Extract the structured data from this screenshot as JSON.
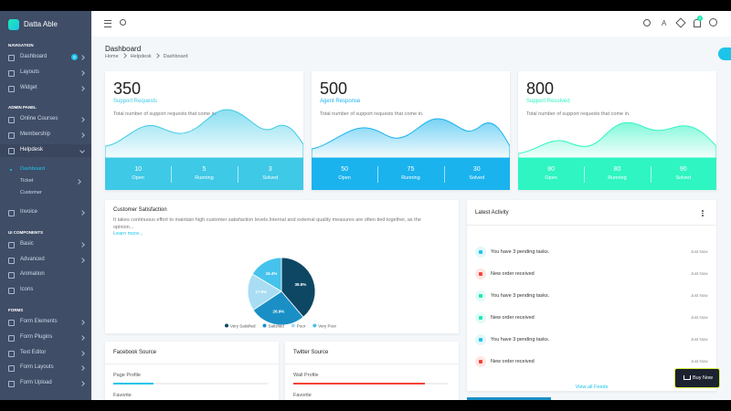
{
  "sidebar": {
    "brand": "Datta Able",
    "sections": [
      {
        "title": "NAVIGATION",
        "items": [
          {
            "label": "Dashboard",
            "badge": "5",
            "chevron": true
          },
          {
            "label": "Layouts",
            "chevron": true
          },
          {
            "label": "Widget",
            "chevron": true
          }
        ]
      },
      {
        "title": "ADMIN PANEL",
        "items": [
          {
            "label": "Online Courses",
            "chevron": true
          },
          {
            "label": "Membership",
            "chevron": true
          },
          {
            "label": "Helpdesk",
            "chevron": true,
            "active": true,
            "children": [
              "Dashboard",
              "Ticket",
              "Customer"
            ]
          },
          {
            "label": "Invoice",
            "chevron": true
          }
        ]
      },
      {
        "title": "UI COMPONENTS",
        "items": [
          {
            "label": "Basic",
            "chevron": true
          },
          {
            "label": "Advanced",
            "chevron": true
          },
          {
            "label": "Animation"
          },
          {
            "label": "Icons"
          }
        ]
      },
      {
        "title": "FORMS",
        "items": [
          {
            "label": "Form Elements",
            "chevron": true
          },
          {
            "label": "Form Plugins",
            "chevron": true
          },
          {
            "label": "Text Editor",
            "chevron": true
          },
          {
            "label": "Form Layouts",
            "chevron": true
          },
          {
            "label": "Form Upload",
            "chevron": true
          }
        ]
      }
    ]
  },
  "header": {
    "title": "Dashboard",
    "breadcrumb": [
      "Home",
      "Helpdesk",
      "Dashboard"
    ],
    "notification_count": "2"
  },
  "stat_cards": [
    {
      "value": 350,
      "label": "Support Requests",
      "description": "Total number of support requests that come in.",
      "color": "#3ec9e6",
      "stats": [
        {
          "value": 10,
          "label": "Open"
        },
        {
          "value": 5,
          "label": "Running"
        },
        {
          "value": 3,
          "label": "Solved"
        }
      ]
    },
    {
      "value": 500,
      "label": "Agent Response",
      "description": "Total number of support requests that come in.",
      "color": "#1ab3ee",
      "stats": [
        {
          "value": 50,
          "label": "Open"
        },
        {
          "value": 75,
          "label": "Running"
        },
        {
          "value": 30,
          "label": "Solved"
        }
      ]
    },
    {
      "value": 800,
      "label": "Support Resolved",
      "description": "Total number of support requests that come in.",
      "color": "#2ef5c1",
      "stats": [
        {
          "value": 80,
          "label": "Open"
        },
        {
          "value": 80,
          "label": "Running"
        },
        {
          "value": 90,
          "label": "Solved"
        }
      ]
    }
  ],
  "satisfaction": {
    "title": "Customer Satisfaction",
    "text": "It takes continuous effort to maintain high customer satisfaction levels.Internal and external quality measures are often tied together, as the opinion...",
    "link": "Learn more...",
    "chart_data": {
      "type": "pie",
      "categories": [
        "Very Satisfied",
        "Satisfied",
        "Poor",
        "Very Poor"
      ],
      "values": [
        38.8,
        26.9,
        17.9,
        16.4
      ],
      "value_labels": [
        "38.8%",
        "26.9%",
        "17.9%",
        "16.4%"
      ],
      "colors": [
        "#0d4763",
        "#1a8fc6",
        "#a9ddf3",
        "#45c3ec"
      ]
    }
  },
  "activity": {
    "title": "Latest Activity",
    "items": [
      {
        "text": "You have 3 pending tasks.",
        "time": "Just Now",
        "color": "#1dc4e9"
      },
      {
        "text": "New order received",
        "time": "Just Now",
        "color": "#f44236"
      },
      {
        "text": "You have 3 pending tasks.",
        "time": "Just Now",
        "color": "#1de9b6"
      },
      {
        "text": "New order received",
        "time": "Just Now",
        "color": "#1de9b6"
      },
      {
        "text": "You have 3 pending tasks.",
        "time": "Just Now",
        "color": "#1dc4e9"
      },
      {
        "text": "New order received",
        "time": "Just Now",
        "color": "#f44236"
      }
    ],
    "footer": "View all Feeds"
  },
  "sources": [
    {
      "title": "Facebook Source",
      "rows": [
        {
          "label": "Page Profile",
          "progress": 26,
          "color": "#1dc4e9"
        },
        {
          "label": "Favorite"
        }
      ]
    },
    {
      "title": "Twitter Source",
      "rows": [
        {
          "label": "Wall Profile",
          "progress": 85,
          "color": "#f44236"
        },
        {
          "label": "Favorite"
        }
      ]
    }
  ],
  "buy_button": "Buy Now"
}
